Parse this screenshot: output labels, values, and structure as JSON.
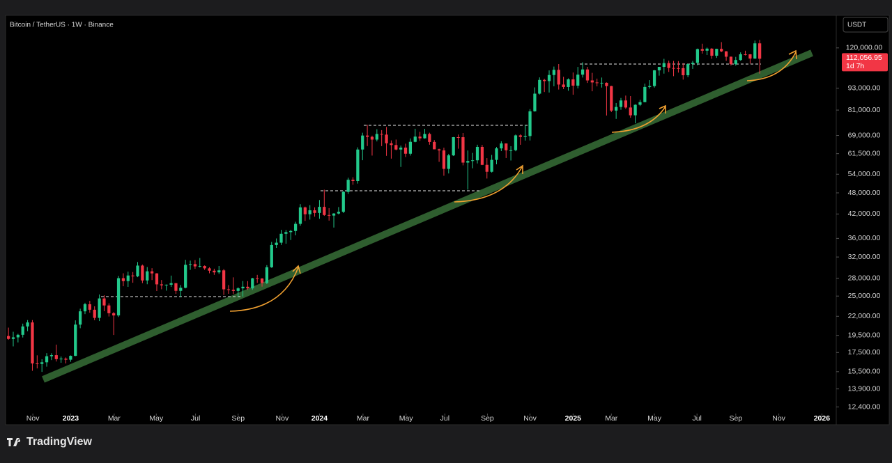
{
  "chart_data": {
    "type": "candlestick",
    "title": "Bitcoin / TetherUS · 1W · Binance",
    "currency": "USDT",
    "last_price": {
      "value": 112056.95,
      "label": "112,056.95"
    },
    "countdown": "1d 7h",
    "brand": "TradingView",
    "log_scale": true,
    "up_color": "#22c98b",
    "down_color": "#f23645",
    "open": [
      19420,
      19070,
      19260,
      19570,
      20630,
      21160,
      16330,
      16280,
      16450,
      17090,
      17210,
      16780,
      16830,
      16720,
      17130,
      20870,
      22700,
      23740,
      22930,
      21780,
      24630,
      23560,
      22430,
      22120,
      27990,
      27480,
      28470,
      28330,
      30310,
      27590,
      29230,
      28850,
      26920,
      26750,
      26860,
      27120,
      25840,
      26340,
      30460,
      30590,
      30160,
      30230,
      29790,
      29350,
      29040,
      29410,
      26090,
      26010,
      25830,
      26250,
      26520,
      26250,
      27970,
      27930,
      27150,
      29990,
      34520,
      35030,
      37060,
      37450,
      37720,
      39460,
      43790,
      41930,
      42990,
      42280,
      43930,
      41730,
      41580,
      42120,
      42580,
      48300,
      52140,
      51730,
      63130,
      68960,
      68390,
      67210,
      69650,
      69360,
      65660,
      64940,
      63120,
      63900,
      61480,
      66270,
      68500,
      67760,
      69650,
      66220,
      63210,
      62770,
      55860,
      60830,
      68250,
      68240,
      58120,
      58710,
      58970,
      64180,
      57300,
      54840,
      59130,
      63580,
      65600,
      62820,
      62850,
      69030,
      68370,
      68740,
      80370,
      89860,
      98010,
      97300,
      101100,
      104460,
      95190,
      93720,
      98360,
      94530,
      101330,
      104710,
      97700,
      96460,
      96120,
      96250,
      94270,
      80740,
      82610,
      86080,
      82330,
      78370,
      83760,
      85170,
      93750,
      94280,
      104120,
      106460,
      109000,
      105700,
      105600,
      105590,
      100960,
      108380,
      109200,
      119100,
      117900,
      119450,
      114200,
      119300,
      117400,
      113500,
      108270,
      111140,
      115270,
      115230,
      112160,
      123500
    ],
    "high": [
      20480,
      19950,
      19690,
      21000,
      21480,
      21480,
      17190,
      16770,
      17430,
      17420,
      18390,
      17060,
      16960,
      17180,
      21440,
      23080,
      23960,
      24250,
      23430,
      25250,
      25130,
      23880,
      22600,
      28390,
      28870,
      29170,
      29100,
      31000,
      30500,
      30030,
      29820,
      28900,
      27670,
      26900,
      28450,
      27130,
      26800,
      31430,
      31280,
      31380,
      31800,
      30350,
      29990,
      29720,
      30240,
      29660,
      26800,
      28140,
      26430,
      27490,
      27480,
      28050,
      28580,
      28000,
      30400,
      35200,
      35980,
      37980,
      37950,
      38000,
      39990,
      44700,
      44000,
      44400,
      43800,
      45880,
      48970,
      43580,
      42230,
      43880,
      48600,
      52820,
      52980,
      64000,
      70200,
      73780,
      68920,
      71770,
      71350,
      72800,
      66870,
      67230,
      64730,
      65500,
      67700,
      71980,
      70600,
      71960,
      70200,
      67000,
      63450,
      63850,
      61430,
      68340,
      69400,
      70080,
      62750,
      61800,
      65070,
      64990,
      59800,
      61000,
      64130,
      66500,
      65620,
      64480,
      69400,
      69520,
      73620,
      81500,
      93480,
      99590,
      98700,
      104090,
      106650,
      108350,
      99960,
      98980,
      102720,
      106420,
      109590,
      106460,
      102500,
      98830,
      99500,
      96500,
      94420,
      84700,
      87450,
      88770,
      88500,
      84000,
      86430,
      95750,
      97900,
      104350,
      105820,
      111980,
      110720,
      110530,
      110400,
      108950,
      108530,
      110500,
      119500,
      123220,
      120250,
      119800,
      119400,
      124470,
      117630,
      113650,
      113380,
      116670,
      117900,
      115400,
      125700,
      126200
    ],
    "low": [
      18960,
      18190,
      18650,
      19240,
      20020,
      15590,
      15820,
      15480,
      16000,
      16680,
      16530,
      16400,
      16330,
      16500,
      17100,
      20400,
      22300,
      22500,
      21460,
      21350,
      22720,
      21970,
      19550,
      21900,
      26600,
      26500,
      27200,
      28170,
      27130,
      26940,
      27660,
      25810,
      26100,
      25870,
      26500,
      25350,
      24800,
      26250,
      29500,
      29700,
      29950,
      29500,
      28870,
      28580,
      28750,
      25170,
      25360,
      25330,
      24900,
      24930,
      26000,
      26000,
      27170,
      26540,
      26970,
      29880,
      33900,
      34530,
      34800,
      35630,
      36700,
      39000,
      40200,
      40530,
      41300,
      40750,
      41500,
      40280,
      38550,
      41890,
      42260,
      47700,
      50520,
      50900,
      59000,
      64530,
      60760,
      66450,
      64500,
      60660,
      59600,
      62790,
      56550,
      60190,
      60750,
      66070,
      66670,
      67600,
      65080,
      63200,
      58400,
      53480,
      54260,
      60600,
      63460,
      57120,
      49000,
      56070,
      57800,
      57200,
      52550,
      54570,
      57490,
      62500,
      59830,
      58900,
      62450,
      65050,
      66800,
      66830,
      80210,
      89380,
      90790,
      90500,
      94150,
      92230,
      92500,
      91530,
      89260,
      92900,
      99500,
      96150,
      91230,
      94090,
      93390,
      78260,
      80000,
      76600,
      81150,
      81650,
      77150,
      74500,
      83100,
      85150,
      92800,
      93380,
      100700,
      102000,
      103100,
      100370,
      102660,
      98200,
      99700,
      105100,
      107500,
      115740,
      114720,
      112000,
      112650,
      116800,
      110550,
      107350,
      107270,
      110620,
      114400,
      108650,
      111970,
      102000
    ],
    "close": [
      19070,
      19260,
      19570,
      20630,
      21160,
      16330,
      16280,
      16450,
      17090,
      17210,
      16780,
      16830,
      16720,
      17130,
      20870,
      22700,
      23740,
      22930,
      21780,
      24630,
      23560,
      22430,
      22120,
      27990,
      27480,
      28470,
      28330,
      30310,
      27590,
      29230,
      28850,
      26920,
      26750,
      26860,
      27120,
      25840,
      26340,
      30460,
      30590,
      30160,
      30230,
      29790,
      29350,
      29040,
      29410,
      26090,
      26010,
      25830,
      26250,
      26520,
      26250,
      27970,
      27930,
      27150,
      29990,
      34520,
      35030,
      37060,
      37450,
      37720,
      39460,
      43790,
      41930,
      42990,
      42280,
      43930,
      41730,
      41580,
      42120,
      42580,
      48300,
      52140,
      51730,
      63130,
      68960,
      68390,
      67210,
      69650,
      69360,
      65660,
      64940,
      63120,
      63900,
      61480,
      66270,
      68500,
      67760,
      69650,
      66220,
      63210,
      62770,
      55860,
      60830,
      68250,
      68240,
      58120,
      58710,
      58970,
      64180,
      57300,
      54840,
      59130,
      63580,
      65600,
      62820,
      62850,
      69030,
      68370,
      68740,
      80370,
      89860,
      98010,
      97300,
      101100,
      104460,
      95190,
      93720,
      98360,
      94530,
      101330,
      104710,
      97700,
      96460,
      96120,
      96250,
      94270,
      80740,
      82610,
      86080,
      82330,
      78370,
      83760,
      85170,
      93750,
      94280,
      104120,
      106460,
      109000,
      105700,
      105600,
      105590,
      100960,
      108380,
      109200,
      119100,
      117900,
      119450,
      114200,
      119300,
      117400,
      113500,
      108270,
      111140,
      115270,
      115230,
      112160,
      123500,
      112056.95
    ],
    "xlim": [
      -0.6,
      173
    ],
    "xticks": [
      {
        "value": 5.1,
        "label": "Nov"
      },
      {
        "value": 13,
        "label": "2023"
      },
      {
        "value": 22.1,
        "label": "Mar"
      },
      {
        "value": 30.9,
        "label": "May"
      },
      {
        "value": 39.1,
        "label": "Jul"
      },
      {
        "value": 48,
        "label": "Sep"
      },
      {
        "value": 57.2,
        "label": "Nov"
      },
      {
        "value": 65,
        "label": "2024"
      },
      {
        "value": 74.1,
        "label": "Mar"
      },
      {
        "value": 83.1,
        "label": "May"
      },
      {
        "value": 91.2,
        "label": "Jul"
      },
      {
        "value": 100.1,
        "label": "Sep"
      },
      {
        "value": 109,
        "label": "Nov"
      },
      {
        "value": 118,
        "label": "2025"
      },
      {
        "value": 126,
        "label": "Mar"
      },
      {
        "value": 135,
        "label": "May"
      },
      {
        "value": 143.9,
        "label": "Jul"
      },
      {
        "value": 152,
        "label": "Sep"
      },
      {
        "value": 161,
        "label": "Nov"
      },
      {
        "value": 170,
        "label": "2026"
      }
    ],
    "ylim": [
      12000,
      131500
    ],
    "yticks": [
      {
        "value": 120000,
        "label": "120,000.00"
      },
      {
        "value": 93000,
        "label": "93,000.00"
      },
      {
        "value": 81000,
        "label": "81,000.00"
      },
      {
        "value": 69000,
        "label": "69,000.00"
      },
      {
        "value": 61500,
        "label": "61,500.00"
      },
      {
        "value": 54000,
        "label": "54,000.00"
      },
      {
        "value": 48000,
        "label": "48,000.00"
      },
      {
        "value": 42000,
        "label": "42,000.00"
      },
      {
        "value": 36000,
        "label": "36,000.00"
      },
      {
        "value": 32000,
        "label": "32,000.00"
      },
      {
        "value": 28000,
        "label": "28,000.00"
      },
      {
        "value": 25000,
        "label": "25,000.00"
      },
      {
        "value": 22000,
        "label": "22,000.00"
      },
      {
        "value": 19500,
        "label": "19,500.00"
      },
      {
        "value": 17500,
        "label": "17,500.00"
      },
      {
        "value": 15500,
        "label": "15,500.00"
      },
      {
        "value": 13900,
        "label": "13,900.00"
      },
      {
        "value": 12400,
        "label": "12,400.00"
      }
    ]
  }
}
